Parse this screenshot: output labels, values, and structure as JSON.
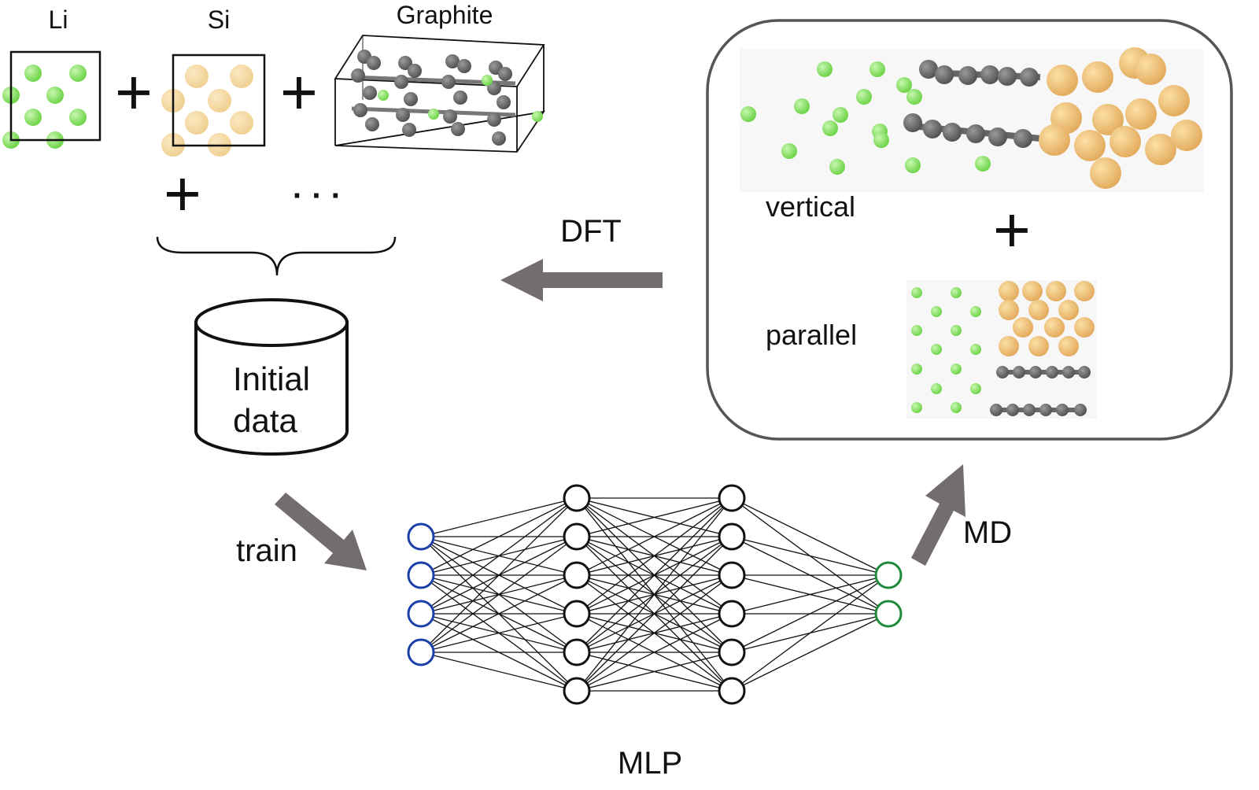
{
  "labels": {
    "li": "Li",
    "si": "Si",
    "graphite": "Graphite",
    "initial_data": [
      "Initial",
      "data"
    ],
    "dft": "DFT",
    "train": "train",
    "md": "MD",
    "mlp": "MLP",
    "vertical": "vertical",
    "parallel": "parallel"
  },
  "symbols": {
    "plus": "+",
    "ellipsis": "· · ·"
  },
  "network": {
    "layers": [
      4,
      6,
      6,
      2
    ]
  },
  "colors": {
    "lithium": "#8ee66b",
    "silicon": "#f2c57a",
    "carbon": "#6e6e6e",
    "arrow": "#736d6d",
    "input_node": "#1a3fa8",
    "hidden_node": "#111111",
    "output_node": "#1e8a3a"
  }
}
